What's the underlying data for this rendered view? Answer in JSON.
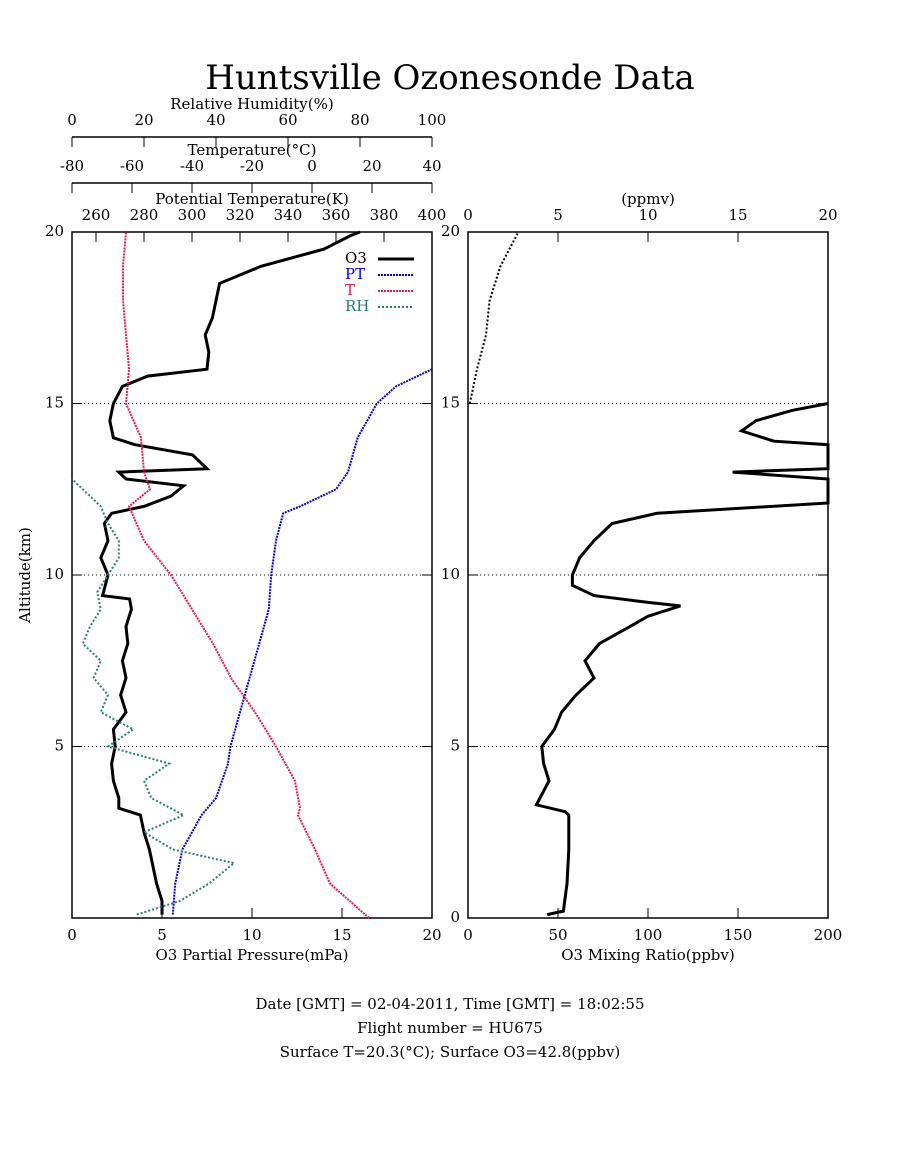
{
  "title": "Huntsville Ozonesonde Data",
  "footer": [
    "Date [GMT] = 02-04-2011,  Time [GMT] = 18:02:55",
    "Flight number = HU675",
    "Surface T=20.3(°C); Surface O3=42.8(ppbv)"
  ],
  "chart_data": [
    {
      "type": "line",
      "xlabel": "O3 Partial Pressure(mPa)",
      "ylabel": "Altitude(km)",
      "xlim": [
        0,
        20
      ],
      "xticks": [
        0,
        5,
        10,
        15,
        20
      ],
      "ylim": [
        0,
        20
      ],
      "yticks": [
        5,
        10,
        15,
        20
      ],
      "grid": true,
      "legend": "upper right",
      "top_axes": [
        {
          "id": "x2",
          "label": "Potential Temperature(K)",
          "lim": [
            250,
            400
          ],
          "ticks": [
            260,
            280,
            300,
            320,
            340,
            360,
            380,
            400
          ]
        },
        {
          "id": "x3",
          "label": "Temperature(°C)",
          "lim": [
            -80,
            40
          ],
          "ticks": [
            -80,
            -60,
            -40,
            -20,
            0,
            20,
            40
          ]
        },
        {
          "id": "x4",
          "label": "Relative Humidity(%)",
          "lim": [
            0,
            100
          ],
          "ticks": [
            0,
            20,
            40,
            60,
            80,
            100
          ]
        }
      ],
      "series": [
        {
          "name": "O3",
          "color": "#000000",
          "axis": "x",
          "style": "solid",
          "altitudes": [
            0.1,
            0.5,
            1,
            2,
            2.5,
            3,
            3.2,
            3.5,
            4,
            4.5,
            5,
            5.5,
            6,
            6.5,
            7,
            7.5,
            8,
            8.5,
            9,
            9.3,
            9.4,
            10,
            10.5,
            11,
            11.5,
            11.8,
            12,
            12.3,
            12.6,
            12.8,
            13,
            13.1,
            13.5,
            13.8,
            14,
            14.5,
            15,
            15.5,
            15.8,
            16,
            16.5,
            17,
            17.5,
            18,
            18.5,
            19,
            19.5,
            19.9,
            20
          ],
          "values": [
            5.0,
            5.0,
            4.7,
            4.3,
            4.0,
            3.8,
            2.6,
            2.6,
            2.3,
            2.2,
            2.4,
            2.3,
            3.0,
            2.7,
            3.0,
            2.8,
            3.1,
            3.0,
            3.3,
            3.2,
            1.7,
            2.0,
            1.6,
            2.0,
            1.8,
            2.2,
            4.0,
            5.5,
            6.2,
            3.0,
            2.6,
            7.5,
            6.7,
            3.5,
            2.3,
            2.1,
            2.3,
            2.8,
            4.2,
            7.5,
            7.6,
            7.4,
            7.8,
            8.0,
            8.2,
            10.5,
            14,
            15.5,
            16
          ]
        },
        {
          "name": "PT",
          "color": "#0000cc",
          "axis": "x2",
          "style": "dots",
          "altitudes": [
            0.1,
            1,
            2,
            3,
            3.5,
            4.5,
            5,
            6,
            7,
            8,
            9,
            10,
            11,
            11.8,
            12,
            12.5,
            13,
            14,
            15,
            15.5,
            16
          ],
          "values": [
            292,
            293,
            296,
            304,
            310,
            315,
            316,
            320,
            324,
            328,
            332,
            333,
            335,
            338,
            345,
            360,
            365,
            369,
            377,
            385,
            400
          ]
        },
        {
          "name": "T",
          "color": "#e8194f",
          "axis": "x3",
          "style": "dots",
          "altitudes": [
            0,
            1,
            2,
            3,
            3.2,
            4,
            5,
            6,
            7,
            8,
            9,
            10,
            11,
            12,
            12.5,
            13,
            14,
            15,
            16,
            17,
            18,
            19,
            20
          ],
          "values": [
            19,
            6,
            1,
            -4.7,
            -4,
            -5.7,
            -12,
            -19,
            -27,
            -33,
            -40,
            -47,
            -56,
            -61,
            -54,
            -56,
            -57,
            -62,
            -61,
            -62,
            -63,
            -63,
            -62
          ]
        },
        {
          "name": "RH",
          "color": "#2a7a7a",
          "axis": "x4",
          "style": "dotted",
          "altitudes": [
            0.1,
            0.5,
            1,
            1.6,
            2,
            2.5,
            3,
            3.5,
            4,
            4.5,
            5,
            5.5,
            6,
            6.5,
            7,
            7.5,
            8,
            8.5,
            9,
            9.5,
            10,
            10.5,
            11,
            11.5,
            12,
            12.5,
            12.8
          ],
          "values": [
            18,
            30,
            38,
            45,
            28,
            20,
            31,
            22,
            20,
            27,
            10,
            17,
            8,
            10,
            6,
            8,
            3,
            5,
            8,
            7,
            10,
            13,
            13,
            10,
            8,
            3,
            0
          ]
        }
      ]
    },
    {
      "type": "line",
      "xlabel": "O3 Mixing Ratio(ppbv)",
      "xlim": [
        0,
        200
      ],
      "xticks": [
        0,
        50,
        100,
        150,
        200
      ],
      "ylim": [
        0,
        20
      ],
      "yticks": [
        0,
        5,
        10,
        15,
        20
      ],
      "grid": true,
      "top_axes": [
        {
          "id": "x2",
          "label": "(ppmv)",
          "lim": [
            0,
            20
          ],
          "ticks": [
            0,
            5,
            10,
            15,
            20
          ]
        }
      ],
      "series": [
        {
          "color": "#000000",
          "axis": "x",
          "style": "solid",
          "altitudes": [
            0.1,
            0.2,
            1,
            2,
            3,
            3.1,
            3.3,
            3.5,
            4,
            4.5,
            5,
            5.5,
            6,
            6.5,
            7,
            7.5,
            8,
            8.5,
            8.8,
            9.1,
            9.2,
            9.4,
            9.7,
            10,
            10.5,
            11,
            11.5,
            11.8,
            12.1,
            12.8,
            13.0,
            13.1,
            13.8,
            13.9,
            14.2,
            14.5,
            14.8,
            15.0
          ],
          "values": [
            44,
            53,
            55,
            56,
            56,
            54,
            38,
            40,
            45,
            42,
            41,
            48,
            52,
            60,
            70,
            65,
            73,
            90,
            100,
            118,
            100,
            70,
            58,
            58,
            62,
            70,
            80,
            105,
            200,
            200,
            147,
            200,
            200,
            170,
            152,
            160,
            180,
            200
          ]
        },
        {
          "color": "#000000",
          "axis": "x2",
          "style": "dotted",
          "altitudes": [
            15,
            16,
            17,
            18,
            19,
            19.5,
            20
          ],
          "values": [
            0.1,
            0.5,
            1.0,
            1.2,
            1.8,
            2.3,
            2.8
          ]
        }
      ]
    }
  ]
}
